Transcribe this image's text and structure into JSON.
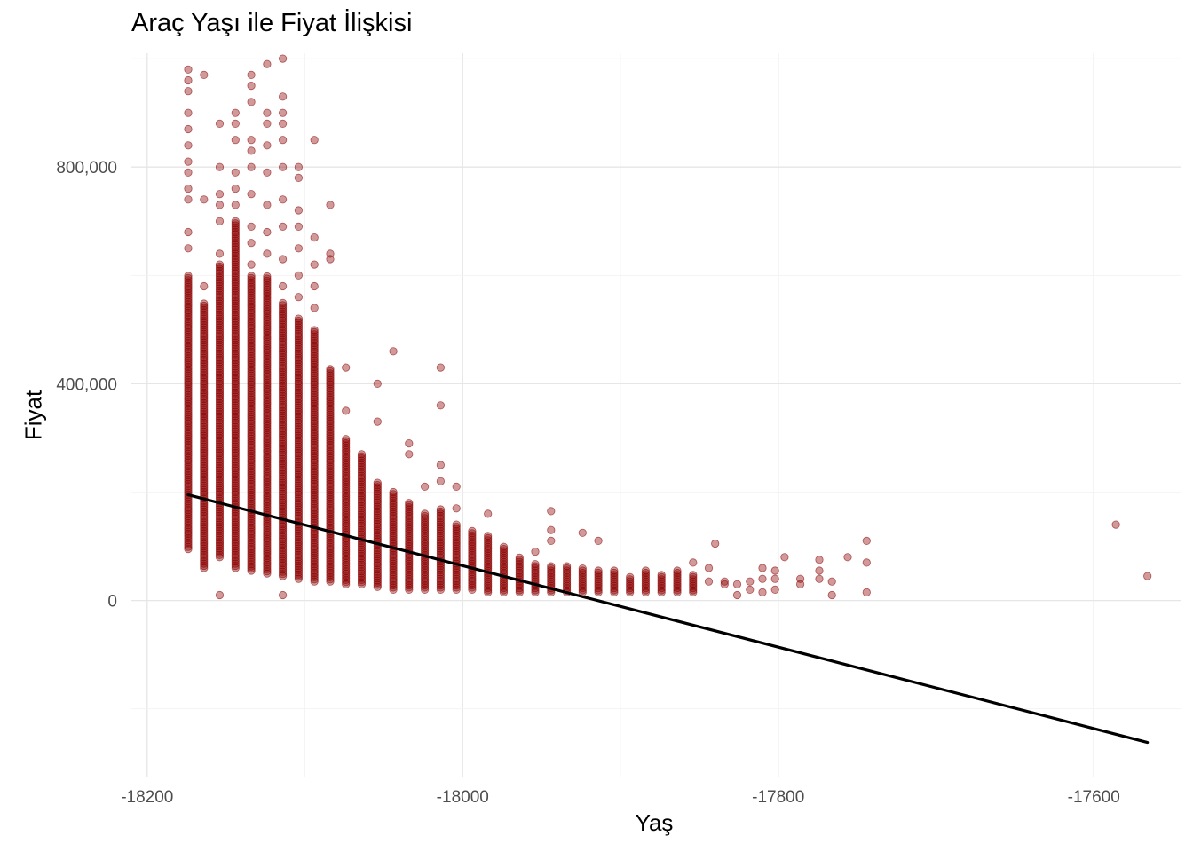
{
  "chart_data": {
    "type": "scatter",
    "title": "Araç Yaşı ile Fiyat İlişkisi",
    "xlabel": "Yaş",
    "ylabel": "Fiyat",
    "xlim": [
      -18210,
      -17545
    ],
    "ylim": [
      -325000,
      1010000
    ],
    "x_ticks": [
      -18200,
      -18000,
      -17800,
      -17600
    ],
    "x_tick_labels": [
      "-18200",
      "-18000",
      "-17800",
      "-17600"
    ],
    "y_ticks": [
      0,
      400000,
      800000
    ],
    "y_tick_labels": [
      "0",
      "400,000",
      "800,000"
    ],
    "grid": true,
    "legend": "none",
    "point_color": "#8b0000",
    "point_opacity": 0.4,
    "line_color": "#000000",
    "columns": [
      {
        "x": -18174,
        "min": 95000,
        "max": 600000,
        "extra": [
          650000,
          680000,
          740000,
          760000,
          790000,
          810000,
          840000,
          870000,
          900000,
          940000,
          960000,
          980000
        ]
      },
      {
        "x": -18164,
        "min": 60000,
        "max": 550000,
        "extra": [
          580000,
          740000,
          970000
        ]
      },
      {
        "x": -18154,
        "min": 80000,
        "max": 620000,
        "extra": [
          10000,
          640000,
          700000,
          730000,
          750000,
          800000,
          880000
        ]
      },
      {
        "x": -18144,
        "min": 60000,
        "max": 700000,
        "extra": [
          730000,
          760000,
          790000,
          850000,
          880000,
          900000
        ]
      },
      {
        "x": -18134,
        "min": 55000,
        "max": 600000,
        "extra": [
          620000,
          660000,
          690000,
          750000,
          800000,
          830000,
          850000,
          920000,
          950000,
          970000
        ]
      },
      {
        "x": -18124,
        "min": 50000,
        "max": 600000,
        "extra": [
          640000,
          680000,
          730000,
          790000,
          840000,
          880000,
          900000,
          990000
        ]
      },
      {
        "x": -18114,
        "min": 45000,
        "max": 550000,
        "extra": [
          10000,
          580000,
          630000,
          690000,
          740000,
          800000,
          850000,
          880000,
          900000,
          930000,
          1000000
        ]
      },
      {
        "x": -18104,
        "min": 40000,
        "max": 520000,
        "extra": [
          560000,
          600000,
          650000,
          690000,
          720000,
          780000,
          800000
        ]
      },
      {
        "x": -18094,
        "min": 35000,
        "max": 500000,
        "extra": [
          540000,
          580000,
          620000,
          670000,
          850000
        ]
      },
      {
        "x": -18084,
        "min": 35000,
        "max": 430000,
        "extra": [
          630000,
          640000,
          730000
        ]
      },
      {
        "x": -18074,
        "min": 30000,
        "max": 300000,
        "extra": [
          350000,
          430000
        ]
      },
      {
        "x": -18064,
        "min": 30000,
        "max": 270000,
        "extra": []
      },
      {
        "x": -18054,
        "min": 25000,
        "max": 220000,
        "extra": [
          330000,
          400000
        ]
      },
      {
        "x": -18044,
        "min": 20000,
        "max": 200000,
        "extra": [
          460000
        ]
      },
      {
        "x": -18034,
        "min": 20000,
        "max": 180000,
        "extra": [
          270000,
          290000
        ]
      },
      {
        "x": -18024,
        "min": 20000,
        "max": 160000,
        "extra": [
          210000
        ]
      },
      {
        "x": -18014,
        "min": 20000,
        "max": 170000,
        "extra": [
          220000,
          250000,
          360000,
          430000
        ]
      },
      {
        "x": -18004,
        "min": 20000,
        "max": 140000,
        "extra": [
          170000,
          210000
        ]
      },
      {
        "x": -17994,
        "min": 20000,
        "max": 130000,
        "extra": []
      },
      {
        "x": -17984,
        "min": 15000,
        "max": 120000,
        "extra": [
          160000
        ]
      },
      {
        "x": -17974,
        "min": 15000,
        "max": 100000,
        "extra": []
      },
      {
        "x": -17964,
        "min": 15000,
        "max": 80000,
        "extra": []
      },
      {
        "x": -17954,
        "min": 15000,
        "max": 70000,
        "extra": [
          90000
        ]
      },
      {
        "x": -17944,
        "min": 15000,
        "max": 65000,
        "extra": [
          110000,
          130000,
          165000
        ]
      },
      {
        "x": -17934,
        "min": 15000,
        "max": 65000,
        "extra": []
      },
      {
        "x": -17924,
        "min": 15000,
        "max": 60000,
        "extra": [
          125000
        ]
      },
      {
        "x": -17914,
        "min": 15000,
        "max": 55000,
        "extra": [
          110000
        ]
      },
      {
        "x": -17904,
        "min": 15000,
        "max": 55000,
        "extra": []
      },
      {
        "x": -17894,
        "min": 15000,
        "max": 45000,
        "extra": []
      },
      {
        "x": -17884,
        "min": 15000,
        "max": 55000,
        "extra": []
      },
      {
        "x": -17874,
        "min": 15000,
        "max": 50000,
        "extra": []
      },
      {
        "x": -17864,
        "min": 15000,
        "max": 55000,
        "extra": []
      },
      {
        "x": -17854,
        "min": 15000,
        "max": 50000,
        "extra": [
          70000
        ]
      }
    ],
    "sparse_points": [
      [
        -17844,
        35000
      ],
      [
        -17844,
        60000
      ],
      [
        -17840,
        105000
      ],
      [
        -17834,
        30000
      ],
      [
        -17834,
        35000
      ],
      [
        -17826,
        10000
      ],
      [
        -17826,
        30000
      ],
      [
        -17818,
        20000
      ],
      [
        -17818,
        35000
      ],
      [
        -17810,
        15000
      ],
      [
        -17810,
        40000
      ],
      [
        -17810,
        60000
      ],
      [
        -17802,
        20000
      ],
      [
        -17802,
        40000
      ],
      [
        -17802,
        55000
      ],
      [
        -17796,
        80000
      ],
      [
        -17786,
        30000
      ],
      [
        -17786,
        40000
      ],
      [
        -17774,
        40000
      ],
      [
        -17774,
        55000
      ],
      [
        -17774,
        75000
      ],
      [
        -17766,
        10000
      ],
      [
        -17766,
        35000
      ],
      [
        -17756,
        80000
      ],
      [
        -17744,
        15000
      ],
      [
        -17744,
        70000
      ],
      [
        -17744,
        110000
      ],
      [
        -17586,
        140000
      ],
      [
        -17566,
        45000
      ]
    ],
    "regression_line": {
      "x": [
        -18174,
        -17566
      ],
      "y": [
        195000,
        -262000
      ]
    }
  }
}
